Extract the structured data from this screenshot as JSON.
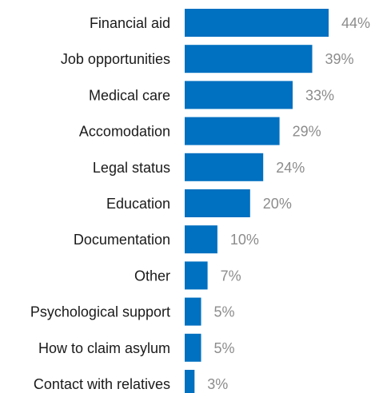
{
  "chart_data": {
    "type": "bar",
    "orientation": "horizontal",
    "categories": [
      "Financial aid",
      "Job opportunities",
      "Medical care",
      "Accomodation",
      "Legal status",
      "Education",
      "Documentation",
      "Other",
      "Psychological support",
      "How to claim asylum",
      "Contact with relatives"
    ],
    "values": [
      44,
      39,
      33,
      29,
      24,
      20,
      10,
      7,
      5,
      5,
      3
    ],
    "value_labels": [
      "44%",
      "39%",
      "33%",
      "29%",
      "24%",
      "20%",
      "10%",
      "7%",
      "5%",
      "5%",
      "3%"
    ],
    "xlim": [
      0,
      44
    ],
    "grid": false,
    "bar_color": "#0070c0",
    "value_label_color": "#8c8c8c"
  }
}
